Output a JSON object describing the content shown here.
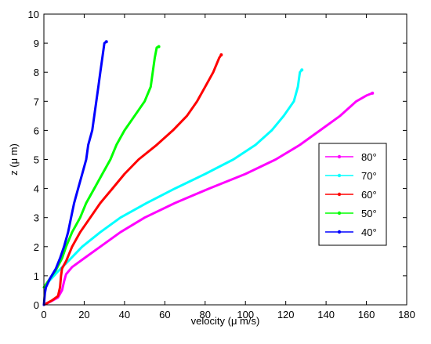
{
  "chart_data": {
    "type": "line",
    "xlabel": "velocity (μ m/s)",
    "ylabel": "z (μ m)",
    "xlim": [
      0,
      180
    ],
    "ylim": [
      0,
      10
    ],
    "xticks": [
      "0",
      "20",
      "40",
      "60",
      "80",
      "100",
      "120",
      "140",
      "160",
      "180"
    ],
    "yticks": [
      "0",
      "1",
      "2",
      "3",
      "4",
      "5",
      "6",
      "7",
      "8",
      "9",
      "10"
    ],
    "grid": false,
    "legend_position": "center-right",
    "series": [
      {
        "name": "80°",
        "color": "#ff00ff",
        "points": [
          [
            0,
            0
          ],
          [
            3,
            0.1
          ],
          [
            7,
            0.25
          ],
          [
            9,
            0.5
          ],
          [
            10,
            0.8
          ],
          [
            11,
            1.05
          ],
          [
            14,
            1.3
          ],
          [
            20,
            1.6
          ],
          [
            28,
            2.0
          ],
          [
            38,
            2.5
          ],
          [
            50,
            3.0
          ],
          [
            65,
            3.5
          ],
          [
            82,
            4.0
          ],
          [
            100,
            4.5
          ],
          [
            115,
            5.0
          ],
          [
            127,
            5.5
          ],
          [
            137,
            6.0
          ],
          [
            147,
            6.5
          ],
          [
            155,
            7.0
          ],
          [
            160,
            7.2
          ],
          [
            163,
            7.28
          ]
        ]
      },
      {
        "name": "70°",
        "color": "#00ffff",
        "points": [
          [
            0,
            0.6
          ],
          [
            3,
            0.85
          ],
          [
            7,
            1.15
          ],
          [
            12,
            1.5
          ],
          [
            19,
            2.0
          ],
          [
            28,
            2.5
          ],
          [
            38,
            3.0
          ],
          [
            51,
            3.5
          ],
          [
            65,
            4.0
          ],
          [
            80,
            4.5
          ],
          [
            94,
            5.0
          ],
          [
            105,
            5.5
          ],
          [
            113,
            6.0
          ],
          [
            119,
            6.5
          ],
          [
            124,
            7.0
          ],
          [
            126,
            7.5
          ],
          [
            127,
            8.0
          ],
          [
            128,
            8.08
          ]
        ]
      },
      {
        "name": "60°",
        "color": "#ff0000",
        "points": [
          [
            0,
            0
          ],
          [
            4,
            0.15
          ],
          [
            7,
            0.3
          ],
          [
            8,
            0.6
          ],
          [
            8.5,
            1.0
          ],
          [
            9,
            1.25
          ],
          [
            11,
            1.5
          ],
          [
            14,
            2.0
          ],
          [
            18,
            2.5
          ],
          [
            23,
            3.0
          ],
          [
            28,
            3.5
          ],
          [
            34,
            4.0
          ],
          [
            40,
            4.5
          ],
          [
            47,
            5.0
          ],
          [
            56,
            5.5
          ],
          [
            64,
            6.0
          ],
          [
            71,
            6.5
          ],
          [
            76,
            7.0
          ],
          [
            80,
            7.5
          ],
          [
            84,
            8.0
          ],
          [
            87,
            8.5
          ],
          [
            88,
            8.6
          ]
        ]
      },
      {
        "name": "50°",
        "color": "#00ff00",
        "points": [
          [
            0,
            0.6
          ],
          [
            3,
            0.9
          ],
          [
            6,
            1.2
          ],
          [
            9,
            1.6
          ],
          [
            11,
            2.0
          ],
          [
            14,
            2.5
          ],
          [
            18,
            3.0
          ],
          [
            21,
            3.5
          ],
          [
            25,
            4.0
          ],
          [
            29,
            4.5
          ],
          [
            33,
            5.0
          ],
          [
            36,
            5.5
          ],
          [
            40,
            6.0
          ],
          [
            45,
            6.5
          ],
          [
            50,
            7.0
          ],
          [
            53,
            7.5
          ],
          [
            54,
            8.0
          ],
          [
            55,
            8.5
          ],
          [
            56,
            8.85
          ],
          [
            57,
            8.88
          ]
        ]
      },
      {
        "name": "40°",
        "color": "#0000ff",
        "points": [
          [
            0,
            0
          ],
          [
            0.5,
            0.4
          ],
          [
            1,
            0.6
          ],
          [
            3,
            0.9
          ],
          [
            6,
            1.25
          ],
          [
            8,
            1.6
          ],
          [
            10,
            2.0
          ],
          [
            12,
            2.5
          ],
          [
            13.5,
            3.0
          ],
          [
            15,
            3.5
          ],
          [
            17,
            4.0
          ],
          [
            19,
            4.5
          ],
          [
            21,
            5.0
          ],
          [
            22,
            5.5
          ],
          [
            24,
            6.0
          ],
          [
            25,
            6.5
          ],
          [
            26,
            7.0
          ],
          [
            27,
            7.5
          ],
          [
            28,
            8.0
          ],
          [
            29,
            8.5
          ],
          [
            30,
            9.0
          ],
          [
            31,
            9.05
          ]
        ]
      }
    ]
  }
}
